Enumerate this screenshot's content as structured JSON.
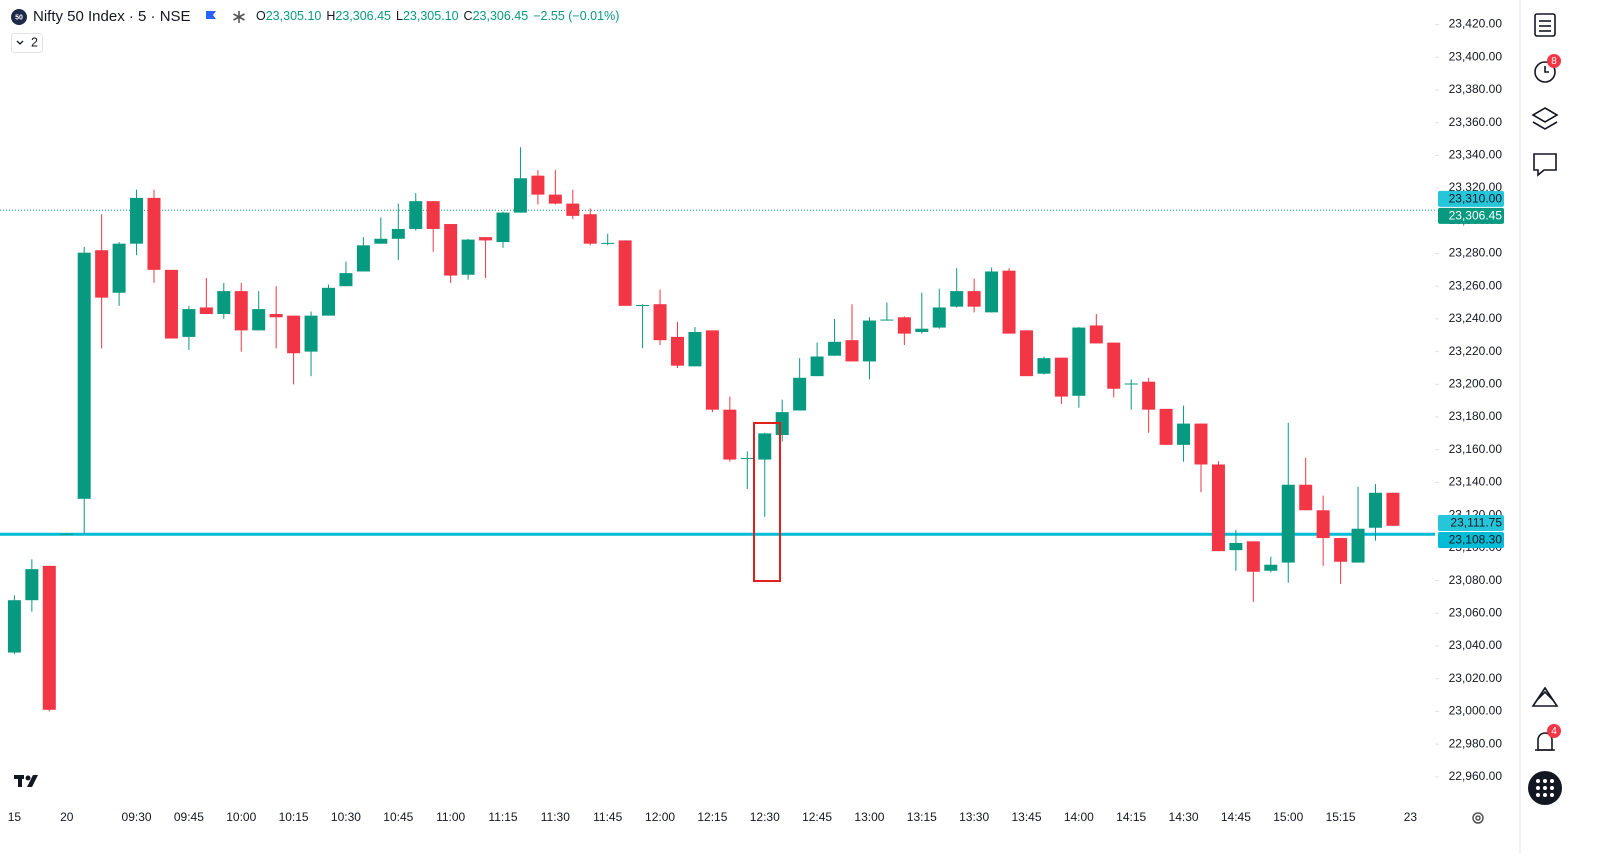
{
  "header": {
    "logo": "50",
    "title": "Nifty 50 Index · 5 · NSE",
    "ohlc": [
      {
        "key": "O",
        "value": "23,305.10"
      },
      {
        "key": "H",
        "value": "23,306.45"
      },
      {
        "key": "L",
        "value": "23,305.10"
      },
      {
        "key": "C",
        "value": "23,306.45"
      }
    ],
    "change": "−2.55 (−0.01%)",
    "indicators": "2"
  },
  "toolbar": {
    "alerts_log_badge": "8",
    "alerts_badge": "4"
  },
  "chart_data": {
    "type": "candlestick",
    "up_color": "#089981",
    "down_color": "#f23645",
    "categories": [
      "15",
      null,
      null,
      "20",
      null,
      null,
      null,
      "09:30",
      null,
      null,
      "09:45",
      null,
      null,
      "10:00",
      null,
      null,
      "10:15",
      null,
      null,
      "10:30",
      null,
      null,
      "10:45",
      null,
      null,
      "11:00",
      null,
      null,
      "11:15",
      null,
      null,
      "11:30",
      null,
      null,
      "11:45",
      null,
      null,
      "12:00",
      null,
      null,
      "12:15",
      null,
      null,
      "12:30",
      null,
      null,
      "12:45",
      null,
      null,
      "13:00",
      null,
      null,
      "13:15",
      null,
      null,
      "13:30",
      null,
      null,
      "13:45",
      null,
      null,
      "14:00",
      null,
      null,
      "14:15",
      null,
      null,
      "14:30",
      null,
      null,
      "14:45",
      null,
      null,
      "15:00",
      null,
      null,
      "15:15",
      null,
      null,
      null,
      "23"
    ],
    "open": [
      23036,
      23068,
      23089,
      23108.5,
      23130,
      23282,
      23256,
      23286,
      23314,
      23270,
      23229,
      23247,
      23243,
      23257,
      23233,
      23243,
      23242,
      23220,
      23242,
      23260,
      23269,
      23286,
      23289,
      23295,
      23312,
      23298,
      23267,
      23290,
      23287,
      23305,
      23327.6,
      23316,
      23310.5,
      23304,
      23286,
      23288,
      23248,
      23249,
      23229,
      23211,
      23233,
      23184.5,
      23154.5,
      23154,
      23169,
      23184,
      23205,
      23217.5,
      23227,
      23214,
      23239.4,
      23241,
      23232,
      23234.7,
      23247.5,
      23257,
      23244,
      23269.5,
      23233,
      23206.5,
      23216.3,
      23193,
      23236,
      23225.5,
      23200,
      23201.6,
      23185,
      23163,
      23176,
      23151,
      23098.6,
      23104,
      23086,
      23091,
      23138.6,
      23123,
      23106,
      23091,
      23112.3,
      23133.7,
      null
    ],
    "high": [
      23071,
      23093,
      23089,
      23109,
      23284,
      23304,
      23287,
      23319,
      23319,
      23270,
      23248,
      23265,
      23262,
      23262,
      23257,
      23260,
      23242,
      23244.5,
      23261,
      23275,
      23290,
      23302,
      23310.5,
      23317,
      23312,
      23298,
      23289,
      23290,
      23305.6,
      23345,
      23331,
      23331,
      23319,
      23307.5,
      23292,
      23288,
      23249,
      23258,
      23238,
      23235,
      23233,
      23192.5,
      23159,
      23170.4,
      23190.6,
      23216,
      23225.5,
      23240,
      23249,
      23241,
      23250,
      23241.5,
      23256,
      23258.5,
      23271,
      23264.6,
      23271.4,
      23271,
      23233,
      23217,
      23216.3,
      23235,
      23243,
      23225.5,
      23203,
      23204,
      23185,
      23187,
      23176,
      23153,
      23111,
      23104,
      23094.6,
      23176.5,
      23155,
      23132,
      23106,
      23137.4,
      23139,
      23133.7,
      null
    ],
    "low": [
      23035,
      23061,
      23000,
      23108,
      23108.5,
      23222,
      23248,
      23279,
      23262,
      23228,
      23221,
      23243,
      23240,
      23220,
      23233,
      23222,
      23200,
      23205,
      23242,
      23260,
      23269,
      23286,
      23276,
      23294,
      23281,
      23262,
      23264,
      23265,
      23283.5,
      23305,
      23310,
      23310,
      23301,
      23285,
      23285,
      23248,
      23222,
      23224,
      23210,
      23211,
      23183,
      23152.7,
      23136,
      23119,
      23165,
      23184,
      23205,
      23217.5,
      23214,
      23203,
      23239,
      23224,
      23231,
      23234,
      23247,
      23244,
      23244,
      23231,
      23205,
      23206,
      23188,
      23185.7,
      23225,
      23192,
      23184.5,
      23170.4,
      23163,
      23152.7,
      23134,
      23098,
      23086,
      23067,
      23085,
      23078.7,
      23123,
      23089,
      23078,
      23091,
      23104.4,
      23113.5,
      null
    ],
    "close": [
      23068,
      23087,
      23001,
      23108.6,
      23280.5,
      23253,
      23286,
      23314,
      23270,
      23228,
      23246,
      23243,
      23257,
      23233,
      23246,
      23241,
      23219,
      23242,
      23259,
      23268,
      23285,
      23289,
      23295,
      23312,
      23295,
      23266.5,
      23288.5,
      23288,
      23305,
      23326,
      23316,
      23310.5,
      23303,
      23286,
      23286.5,
      23248,
      23248.5,
      23227,
      23211.4,
      23232,
      23184.5,
      23154,
      23155,
      23170,
      23183,
      23204,
      23217,
      23226,
      23214,
      23239,
      23239.6,
      23231,
      23234,
      23247,
      23257,
      23247.5,
      23269,
      23231,
      23205,
      23216,
      23192.5,
      23234.7,
      23225,
      23197.3,
      23200.5,
      23184.5,
      23163,
      23176,
      23151,
      23098,
      23103,
      23085.4,
      23089.7,
      23138.6,
      23123,
      23106,
      23091.5,
      23111.7,
      23133.7,
      23113.5,
      null
    ],
    "ylim": [
      22944,
      23435
    ],
    "yticks": [
      {
        "value": 22960,
        "label": "22,960.00"
      },
      {
        "value": 22980,
        "label": "22,980.00"
      },
      {
        "value": 23000,
        "label": "23,000.00"
      },
      {
        "value": 23020,
        "label": "23,020.00"
      },
      {
        "value": 23040,
        "label": "23,040.00"
      },
      {
        "value": 23060,
        "label": "23,060.00"
      },
      {
        "value": 23080,
        "label": "23,080.00"
      },
      {
        "value": 23100,
        "label": "23,100.00"
      },
      {
        "value": 23120,
        "label": "23,120.00"
      },
      {
        "value": 23140,
        "label": "23,140.00"
      },
      {
        "value": 23160,
        "label": "23,160.00"
      },
      {
        "value": 23180,
        "label": "23,180.00"
      },
      {
        "value": 23200,
        "label": "23,200.00"
      },
      {
        "value": 23220,
        "label": "23,220.00"
      },
      {
        "value": 23240,
        "label": "23,240.00"
      },
      {
        "value": 23260,
        "label": "23,260.00"
      },
      {
        "value": 23280,
        "label": "23,280.00"
      },
      {
        "value": 23300,
        "label": "23,300.00"
      },
      {
        "value": 23320,
        "label": "23,320.00"
      },
      {
        "value": 23340,
        "label": "23,340.00"
      },
      {
        "value": 23360,
        "label": "23,360.00"
      },
      {
        "value": 23380,
        "label": "23,380.00"
      },
      {
        "value": 23400,
        "label": "23,400.00"
      },
      {
        "value": 23420,
        "label": "23,420.00"
      }
    ],
    "grid": false,
    "price_tags": [
      {
        "value": 23310,
        "label": "23,310.00",
        "color": "#26c6da",
        "text_color": "#131722"
      },
      {
        "value": 23306.45,
        "label": "23,306.45",
        "color": "#089981",
        "text_color": "#ffffff",
        "line": "dotted"
      },
      {
        "value": 23111.75,
        "label": "23,111.75",
        "color": "#26c6da",
        "text_color": "#131722"
      },
      {
        "value": 23108.3,
        "label": "23,108.30",
        "color": "#00bcd4",
        "text_color": "#131722",
        "line": "solid"
      }
    ]
  }
}
